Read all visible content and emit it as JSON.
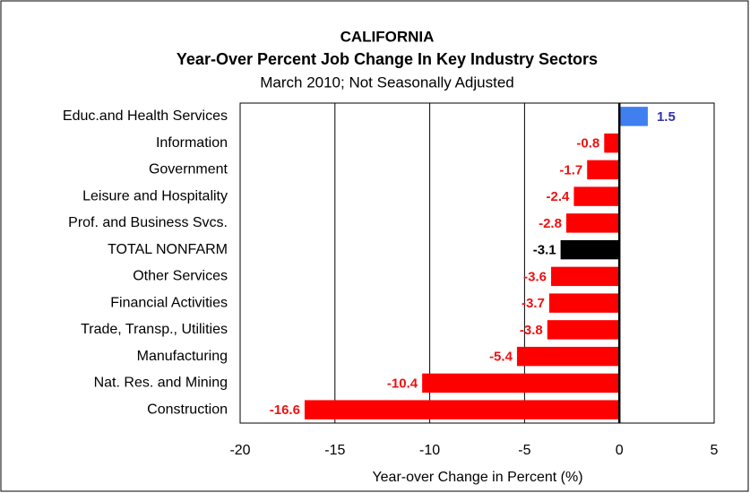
{
  "chart_data": {
    "type": "hbar",
    "title": "CALIFORNIA",
    "subtitle": "Year-Over Percent Job Change In Key Industry Sectors",
    "note": "March 2010; Not Seasonally Adjusted",
    "x_label": "Year-over Change in Percent (%)",
    "categories": [
      "Educ.and Health Services",
      "Information",
      "Government",
      "Leisure and Hospitality",
      "Prof. and Business Svcs.",
      "TOTAL NONFARM",
      "Other Services",
      "Financial Activities",
      "Trade, Transp., Utilities",
      "Manufacturing",
      "Nat. Res. and Mining",
      "Construction"
    ],
    "values": [
      1.5,
      -0.8,
      -1.7,
      -2.4,
      -2.8,
      -3.1,
      -3.6,
      -3.7,
      -3.8,
      -5.4,
      -10.4,
      -16.6
    ],
    "colors": [
      "#3f7ff0",
      "#ff0000",
      "#ff0000",
      "#ff0000",
      "#ff0000",
      "#000000",
      "#ff0000",
      "#ff0000",
      "#ff0000",
      "#ff0000",
      "#ff0000",
      "#ff0000"
    ],
    "label_colors": [
      "#3333aa",
      "#ee1111",
      "#ee1111",
      "#ee1111",
      "#ee1111",
      "#000000",
      "#ee1111",
      "#ee1111",
      "#ee1111",
      "#ee1111",
      "#ee1111",
      "#ee1111"
    ],
    "xlim": [
      -20,
      5
    ],
    "xticks": [
      -20,
      -15,
      -10,
      -5,
      0,
      5
    ],
    "grid": true
  }
}
